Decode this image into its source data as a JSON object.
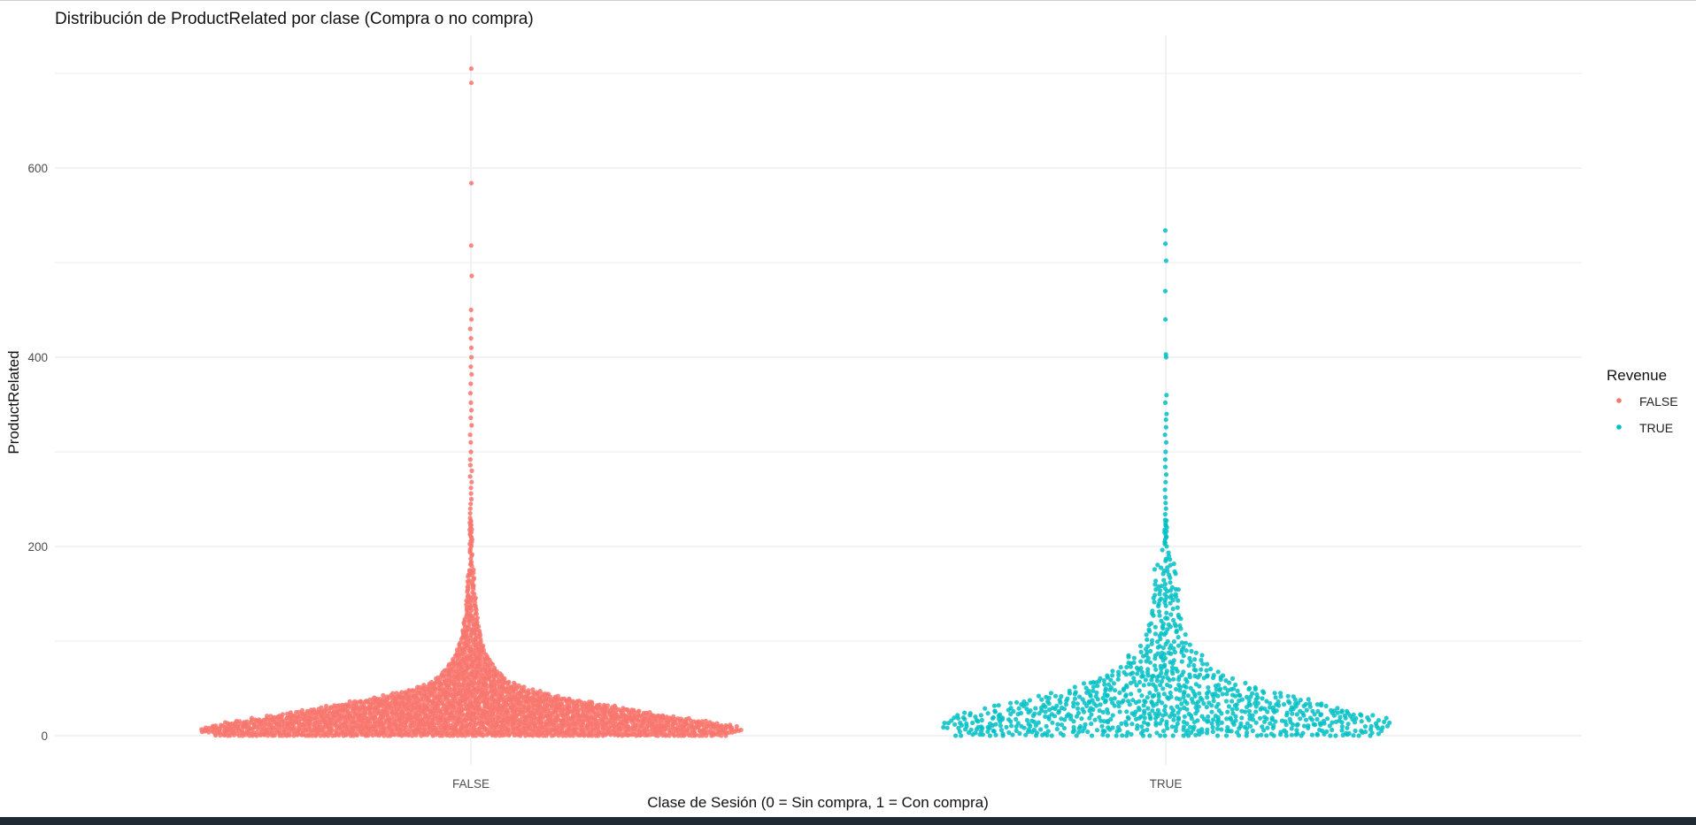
{
  "chart_data": {
    "type": "scatter",
    "title": "Distribución de ProductRelated por clase (Compra o no compra)",
    "xlabel": "Clase de Sesión (0 = Sin compra, 1 = Con compra)",
    "ylabel": "ProductRelated",
    "categories": [
      "FALSE",
      "TRUE"
    ],
    "y_ticks": [
      0,
      200,
      400,
      600
    ],
    "ylim": [
      -30,
      720
    ],
    "grid": true,
    "legend": {
      "title": "Revenue",
      "position": "right",
      "entries": [
        {
          "label": "FALSE",
          "color": "#F8766D"
        },
        {
          "label": "TRUE",
          "color": "#00BFC4"
        }
      ]
    },
    "series": [
      {
        "name": "FALSE",
        "category": "FALSE",
        "color": "#F8766D",
        "extreme_values": [
          705,
          690,
          584,
          518,
          486,
          450,
          440,
          430,
          420,
          410,
          400,
          390,
          382,
          372,
          362,
          352,
          344,
          336,
          328,
          318,
          310,
          300,
          292,
          286,
          280,
          274,
          268,
          262,
          256,
          250,
          245,
          240,
          235,
          230,
          226,
          222,
          218,
          214,
          210,
          206,
          202
        ],
        "density_profile": [
          [
            0,
            290
          ],
          [
            2,
            290
          ],
          [
            5,
            310
          ],
          [
            10,
            300
          ],
          [
            15,
            270
          ],
          [
            20,
            230
          ],
          [
            25,
            200
          ],
          [
            30,
            170
          ],
          [
            35,
            140
          ],
          [
            40,
            110
          ],
          [
            45,
            85
          ],
          [
            50,
            65
          ],
          [
            55,
            50
          ],
          [
            60,
            40
          ],
          [
            70,
            30
          ],
          [
            80,
            22
          ],
          [
            90,
            17
          ],
          [
            100,
            13
          ],
          [
            120,
            9
          ],
          [
            140,
            7
          ],
          [
            160,
            5
          ],
          [
            180,
            4
          ],
          [
            200,
            3
          ]
        ]
      },
      {
        "name": "TRUE",
        "category": "TRUE",
        "color": "#00BFC4",
        "extreme_values": [
          534,
          520,
          502,
          470,
          440,
          403,
          400,
          360,
          352,
          340,
          334,
          326,
          318,
          310,
          300,
          292,
          284,
          276,
          268,
          260,
          252,
          246,
          240,
          234,
          228,
          222,
          216,
          210,
          204
        ],
        "density_profile": [
          [
            0,
            240
          ],
          [
            5,
            245
          ],
          [
            10,
            255
          ],
          [
            15,
            255
          ],
          [
            20,
            245
          ],
          [
            25,
            225
          ],
          [
            30,
            200
          ],
          [
            35,
            175
          ],
          [
            40,
            150
          ],
          [
            45,
            128
          ],
          [
            50,
            108
          ],
          [
            55,
            92
          ],
          [
            60,
            80
          ],
          [
            65,
            68
          ],
          [
            70,
            58
          ],
          [
            75,
            50
          ],
          [
            80,
            44
          ],
          [
            85,
            44
          ],
          [
            90,
            36
          ],
          [
            95,
            30
          ],
          [
            100,
            26
          ],
          [
            110,
            22
          ],
          [
            120,
            20
          ],
          [
            130,
            18
          ],
          [
            140,
            17
          ],
          [
            150,
            16
          ],
          [
            160,
            16
          ],
          [
            170,
            15
          ],
          [
            180,
            14
          ],
          [
            190,
            8
          ],
          [
            200,
            6
          ]
        ]
      }
    ]
  }
}
